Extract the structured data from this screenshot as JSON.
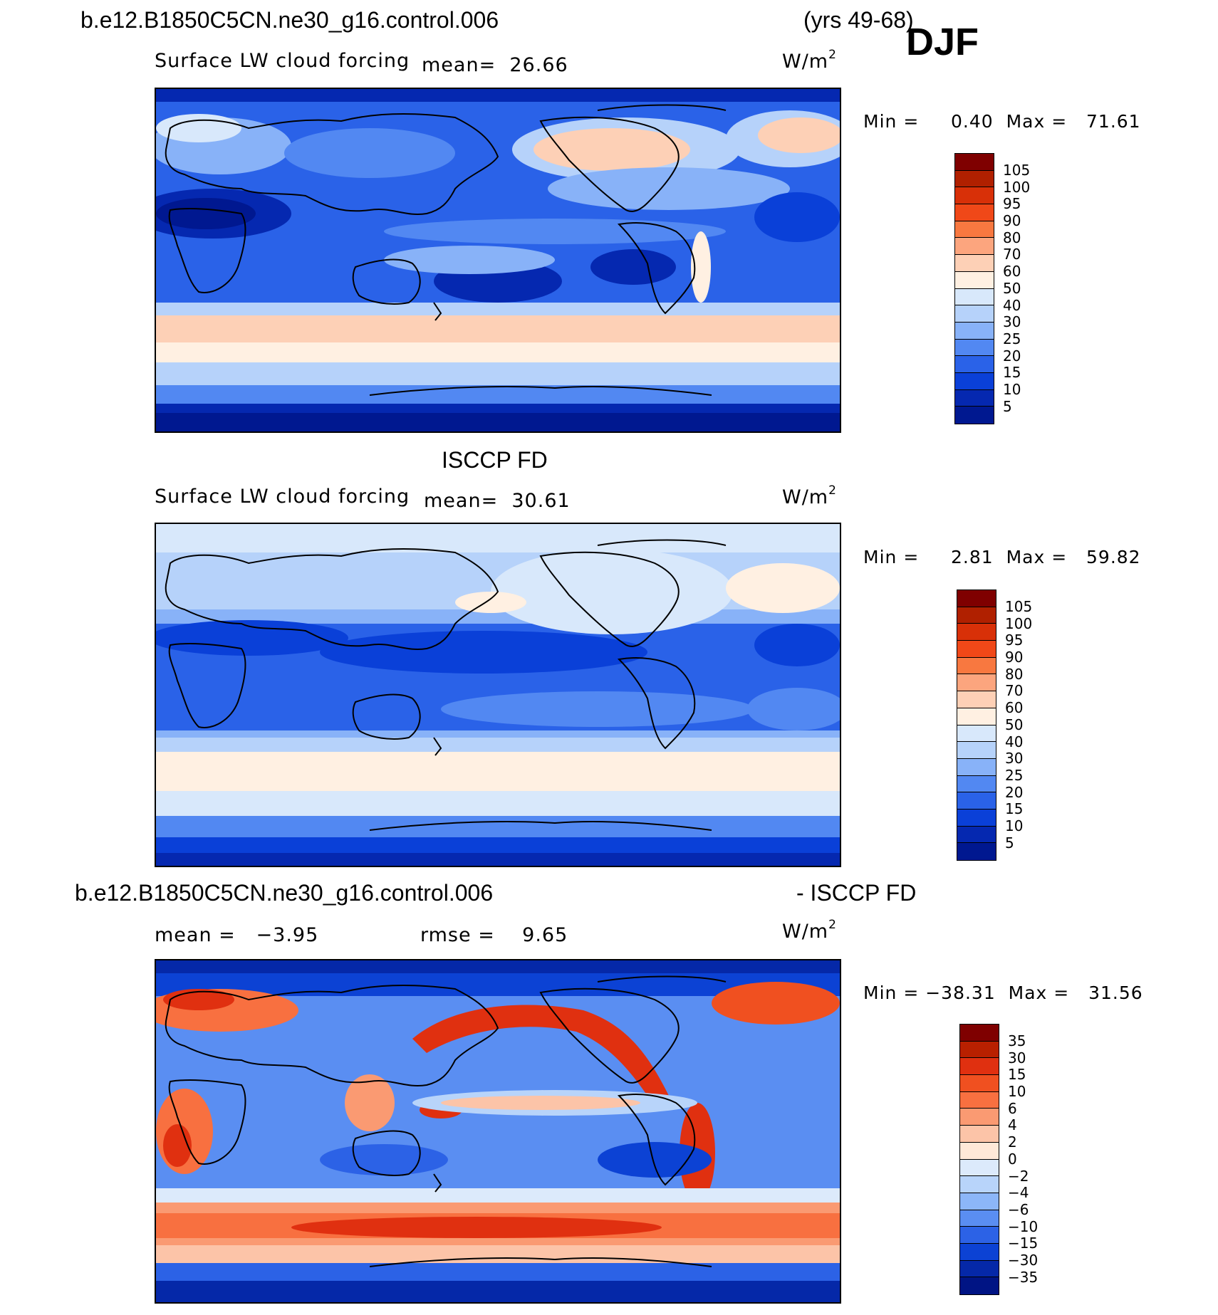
{
  "header": {
    "case_name": "b.e12.B1850C5CN.ne30_g16.control.006",
    "years": "(yrs 49-68)",
    "season": "DJF"
  },
  "panels": [
    {
      "id": "model",
      "title": "",
      "variable": "Surface LW cloud forcing",
      "mean_label": "mean=",
      "mean_value": "26.66",
      "units_base": "W/m",
      "units_exp": "2",
      "min_label": "Min",
      "min_value": "0.40",
      "max_label": "Max",
      "max_value": "71.61",
      "colorbar_ticks": [
        "105",
        "100",
        "95",
        "90",
        "80",
        "70",
        "60",
        "50",
        "40",
        "30",
        "25",
        "20",
        "15",
        "10",
        "5"
      ]
    },
    {
      "id": "obs",
      "title": "ISCCP FD",
      "variable": "Surface LW cloud forcing",
      "mean_label": "mean=",
      "mean_value": "30.61",
      "units_base": "W/m",
      "units_exp": "2",
      "min_label": "Min",
      "min_value": "2.81",
      "max_label": "Max",
      "max_value": "59.82",
      "colorbar_ticks": [
        "105",
        "100",
        "95",
        "90",
        "80",
        "70",
        "60",
        "50",
        "40",
        "30",
        "25",
        "20",
        "15",
        "10",
        "5"
      ]
    },
    {
      "id": "diff",
      "title_left": "b.e12.B1850C5CN.ne30_g16.control.006",
      "title_right": "- ISCCP FD",
      "mean_label": "mean =",
      "mean_value": "−3.95",
      "rmse_label": "rmse =",
      "rmse_value": "9.65",
      "units_base": "W/m",
      "units_exp": "2",
      "min_label": "Min",
      "min_value": "−38.31",
      "max_label": "Max",
      "max_value": "31.56",
      "colorbar_ticks": [
        "35",
        "30",
        "15",
        "10",
        "6",
        "4",
        "2",
        "0",
        "−2",
        "−4",
        "−6",
        "−10",
        "−15",
        "−30",
        "−35"
      ]
    }
  ],
  "colors": {
    "abs_scale": [
      "#7f0000",
      "#b02000",
      "#d83008",
      "#f04818",
      "#f87840",
      "#fca57e",
      "#fdd0b6",
      "#fff0e2",
      "#d8e8fb",
      "#b6d2fa",
      "#88b2f8",
      "#5288f2",
      "#2a62e8",
      "#0a40d8",
      "#0528b0",
      "#001890"
    ],
    "diff_scale": [
      "#7f0000",
      "#b82000",
      "#e03010",
      "#f05020",
      "#f87040",
      "#fa9a72",
      "#fcc4a8",
      "#ffe8d8",
      "#dceafb",
      "#b8d4fa",
      "#8cb6f8",
      "#5a8ef2",
      "#2c62e6",
      "#0c42d4",
      "#0528a8",
      "#001484"
    ],
    "coastline": "#000000"
  }
}
